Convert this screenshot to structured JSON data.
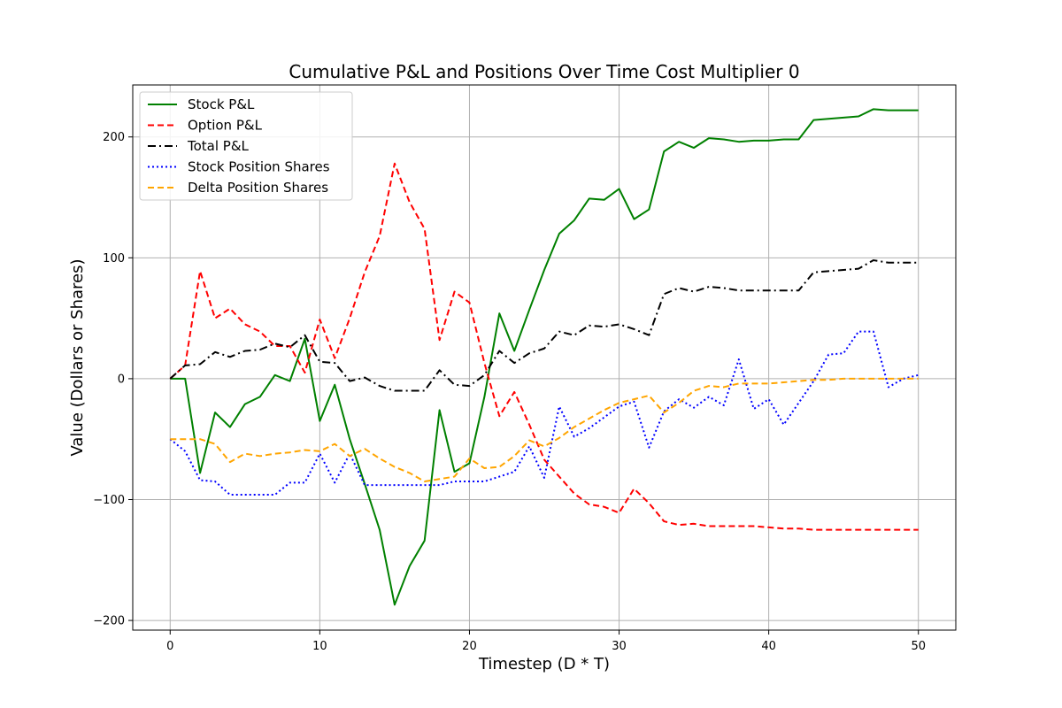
{
  "chart_data": {
    "type": "line",
    "title": "Cumulative P&L and Positions Over Time Cost Multiplier 0",
    "xlabel": "Timestep (D * T)",
    "ylabel": "Value (Dollars or Shares)",
    "xlim": [
      -2.5,
      52.5
    ],
    "ylim": [
      -208,
      243
    ],
    "xticks": [
      0,
      10,
      20,
      30,
      40,
      50
    ],
    "yticks": [
      -200,
      -100,
      0,
      100,
      200
    ],
    "ytick_labels": [
      "−200",
      "−100",
      "0",
      "100",
      "200"
    ],
    "grid": true,
    "legend_position": "upper-left",
    "x": [
      0,
      1,
      2,
      3,
      4,
      5,
      6,
      7,
      8,
      9,
      10,
      11,
      12,
      13,
      14,
      15,
      16,
      17,
      18,
      19,
      20,
      21,
      22,
      23,
      24,
      25,
      26,
      27,
      28,
      29,
      30,
      31,
      32,
      33,
      34,
      35,
      36,
      37,
      38,
      39,
      40,
      41,
      42,
      43,
      44,
      45,
      46,
      47,
      48,
      49,
      50
    ],
    "series": [
      {
        "name": "Stock P&L",
        "color": "#008000",
        "style": "solid",
        "values": [
          0,
          0,
          -78,
          -28,
          -40,
          -21,
          -15,
          3,
          -2,
          33,
          -35,
          -5,
          -50,
          -87,
          -125,
          -187,
          -155,
          -134,
          -26,
          -77,
          -70,
          -15,
          54,
          23,
          57,
          90,
          120,
          131,
          149,
          148,
          157,
          132,
          140,
          188,
          196,
          191,
          199,
          198,
          196,
          197,
          197,
          198,
          198,
          214,
          215,
          216,
          217,
          223,
          222,
          222,
          222
        ]
      },
      {
        "name": "Option P&L",
        "color": "#ff0000",
        "style": "dashed",
        "values": [
          0,
          11,
          89,
          50,
          58,
          45,
          39,
          27,
          27,
          5,
          49,
          17,
          50,
          88,
          118,
          178,
          146,
          124,
          32,
          72,
          63,
          13,
          -31,
          -11,
          -38,
          -67,
          -81,
          -95,
          -104,
          -106,
          -111,
          -91,
          -103,
          -118,
          -121,
          -120,
          -122,
          -122,
          -122,
          -122,
          -123,
          -124,
          -124,
          -125,
          -125,
          -125,
          -125,
          -125,
          -125,
          -125,
          -125
        ]
      },
      {
        "name": "Total P&L",
        "color": "#000000",
        "style": "dashdot",
        "values": [
          0,
          11,
          12,
          22,
          18,
          23,
          24,
          29,
          26,
          36,
          14,
          13,
          -2,
          1,
          -6,
          -10,
          -10,
          -10,
          7,
          -5,
          -6,
          3,
          23,
          13,
          21,
          25,
          39,
          36,
          44,
          43,
          45,
          41,
          36,
          70,
          75,
          72,
          76,
          75,
          73,
          73,
          73,
          73,
          73,
          88,
          89,
          90,
          91,
          98,
          96,
          96,
          96
        ]
      },
      {
        "name": "Stock Position Shares",
        "color": "#0000ff",
        "style": "dotted",
        "values": [
          -50,
          -60,
          -84,
          -85,
          -96,
          -96,
          -96,
          -96,
          -86,
          -86,
          -62,
          -86,
          -62,
          -88,
          -88,
          -88,
          -88,
          -88,
          -88,
          -85,
          -85,
          -85,
          -81,
          -77,
          -56,
          -82,
          -23,
          -48,
          -41,
          -32,
          -23,
          -19,
          -57,
          -27,
          -17,
          -24,
          -15,
          -22,
          16,
          -25,
          -17,
          -38,
          -20,
          -2,
          20,
          21,
          39,
          39,
          -7,
          0,
          3
        ]
      },
      {
        "name": "Delta Position Shares",
        "color": "#ffa500",
        "style": "dashed",
        "values": [
          -50,
          -50,
          -50,
          -54,
          -69,
          -62,
          -64,
          -62,
          -61,
          -59,
          -60,
          -54,
          -64,
          -58,
          -66,
          -73,
          -78,
          -85,
          -83,
          -81,
          -66,
          -74,
          -73,
          -64,
          -51,
          -56,
          -49,
          -40,
          -33,
          -26,
          -20,
          -17,
          -14,
          -28,
          -20,
          -10,
          -6,
          -7,
          -4,
          -4,
          -4,
          -3,
          -2,
          -1,
          -1,
          0,
          0,
          0,
          0,
          0,
          0
        ]
      }
    ]
  }
}
